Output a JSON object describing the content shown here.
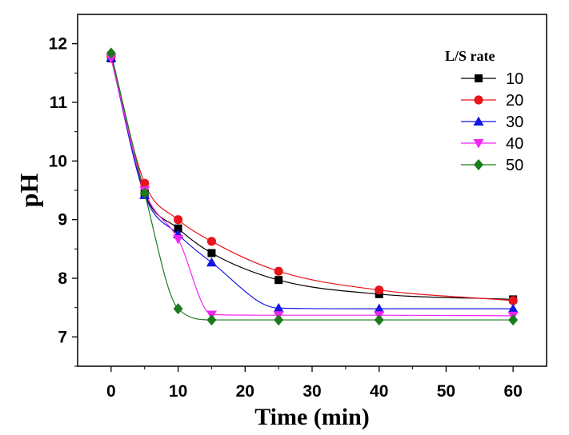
{
  "chart_data": {
    "type": "scatter",
    "title": "",
    "xlabel": "Time (min)",
    "ylabel": "pH",
    "xlim": [
      -5,
      65
    ],
    "ylim": [
      6.5,
      12.5
    ],
    "xticks": [
      0,
      10,
      20,
      30,
      40,
      50,
      60
    ],
    "yticks": [
      7,
      8,
      9,
      10,
      11,
      12
    ],
    "x_tick_labels": [
      "0",
      "10",
      "20",
      "30",
      "40",
      "50",
      "60"
    ],
    "y_tick_labels": [
      "7",
      "8",
      "9",
      "10",
      "11",
      "12"
    ],
    "grid": false,
    "legend": {
      "title": "L/S rate",
      "position": "top-right"
    },
    "fitted_curves": true,
    "series": [
      {
        "name": "10",
        "color": "#000000",
        "marker": "square",
        "x": [
          0,
          5,
          10,
          15,
          25,
          40,
          60
        ],
        "y": [
          11.75,
          9.45,
          8.85,
          8.43,
          7.97,
          7.73,
          7.64
        ]
      },
      {
        "name": "20",
        "color": "#e8141b",
        "marker": "circle",
        "x": [
          0,
          5,
          10,
          15,
          25,
          40,
          60
        ],
        "y": [
          11.78,
          9.62,
          9.0,
          8.63,
          8.12,
          7.8,
          7.62
        ]
      },
      {
        "name": "30",
        "color": "#1515e6",
        "marker": "triangle-up",
        "x": [
          0,
          5,
          10,
          15,
          25,
          40,
          60
        ],
        "y": [
          11.76,
          9.42,
          8.75,
          8.27,
          7.49,
          7.48,
          7.48
        ]
      },
      {
        "name": "40",
        "color": "#f026f0",
        "marker": "triangle-down",
        "x": [
          0,
          5,
          10,
          15,
          25,
          40,
          60
        ],
        "y": [
          11.75,
          9.5,
          8.67,
          7.38,
          7.37,
          7.37,
          7.36
        ]
      },
      {
        "name": "50",
        "color": "#1b7a1b",
        "marker": "diamond",
        "x": [
          0,
          5,
          10,
          15,
          25,
          40,
          60
        ],
        "y": [
          11.84,
          9.45,
          7.48,
          7.29,
          7.29,
          7.29,
          7.29
        ]
      }
    ]
  }
}
